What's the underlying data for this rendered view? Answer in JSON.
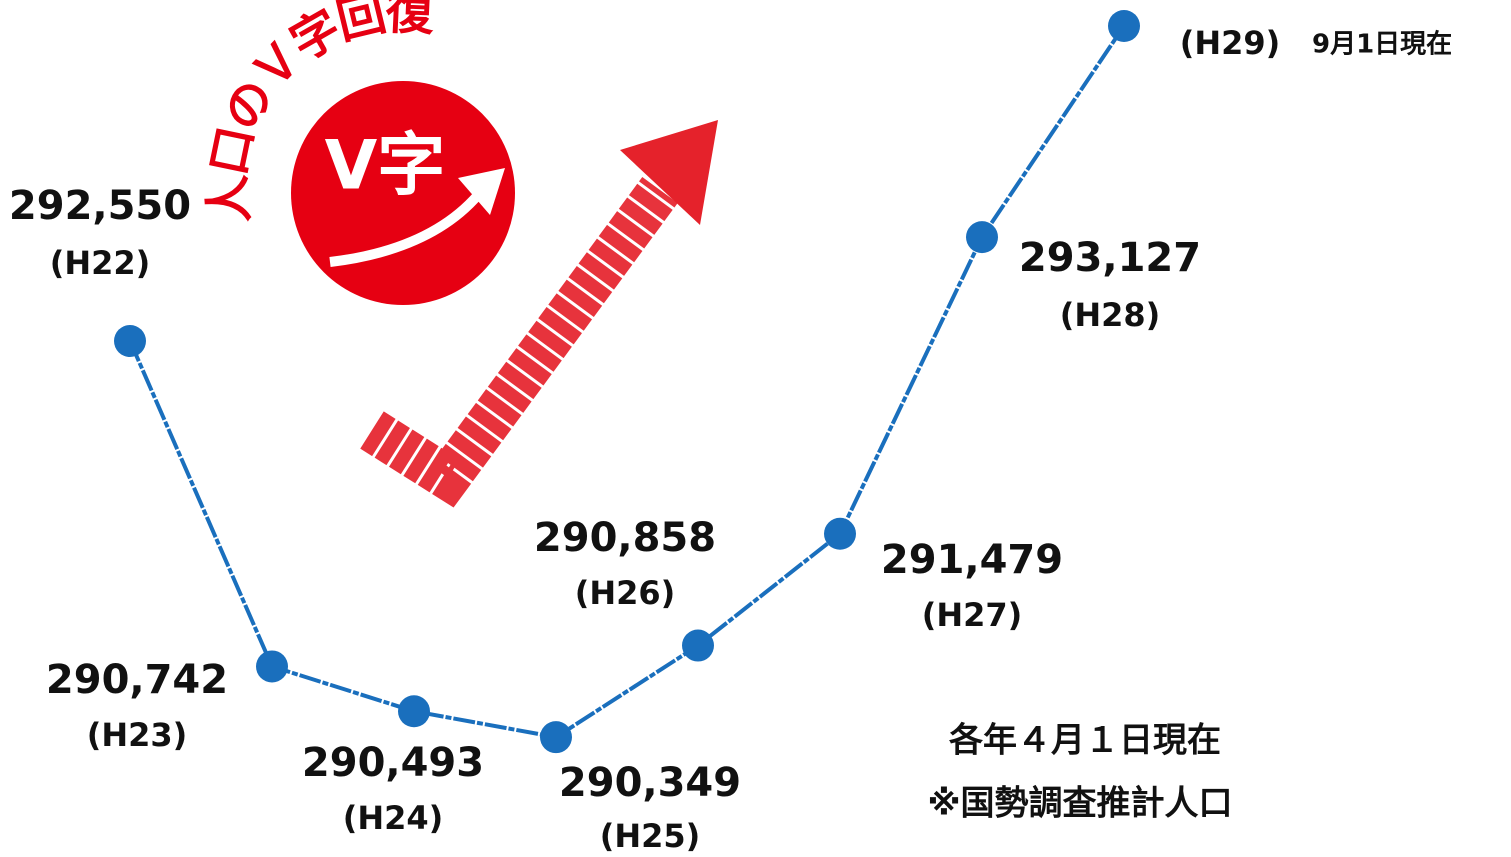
{
  "chart_data": {
    "type": "line",
    "title": "人口のＶ字回復",
    "badge": "V字",
    "categories": [
      "(H22)",
      "(H23)",
      "(H24)",
      "(H25)",
      "(H26)",
      "(H27)",
      "(H28)",
      "(H29)"
    ],
    "values": [
      292550,
      290742,
      290493,
      290349,
      290858,
      291479,
      293127,
      294300
    ],
    "value_labels": [
      "292,550",
      "290,742",
      "290,493",
      "290,349",
      "290,858",
      "291,479",
      "293,127",
      null
    ],
    "last_point_note": "9月1日現在",
    "notes": [
      "各年４月１日現在",
      "※国勢調査推計人口"
    ],
    "color": "#1a6fbd",
    "ylim": [
      290000,
      294400
    ]
  }
}
